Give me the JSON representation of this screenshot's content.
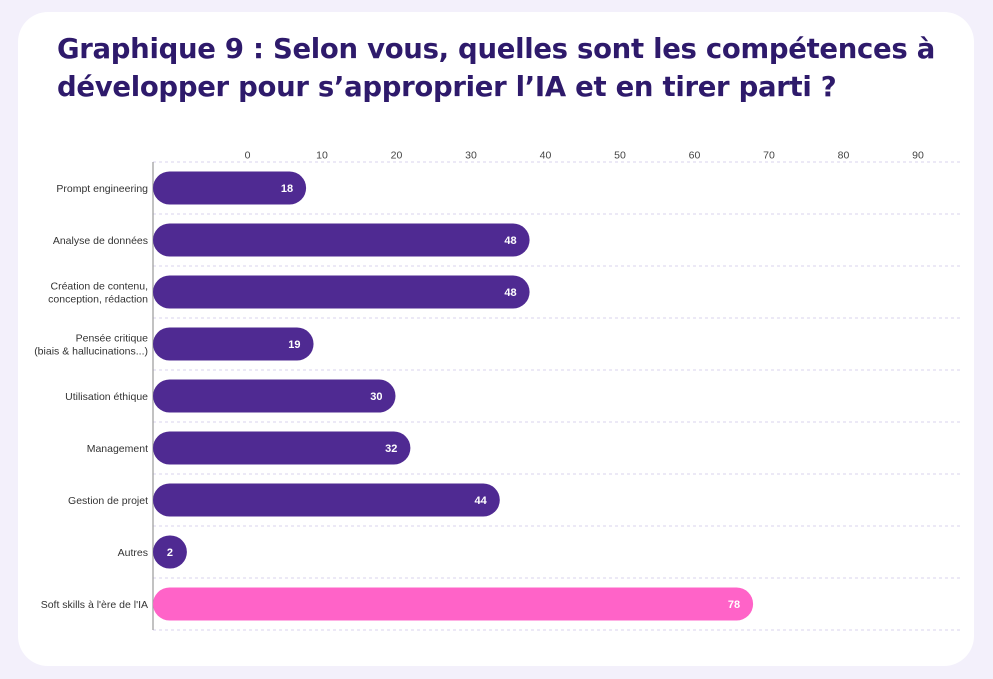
{
  "title": "Graphique 9 : Selon vous, quelles sont les compétences à développer pour s’approprier l’IA et en tirer parti ?",
  "colors": {
    "bar": "#4f2a92",
    "highlight": "#ff63c8",
    "background": "#f3f0fb",
    "card": "#ffffff",
    "title": "#2e1a6b",
    "grid": "#d9d3ee",
    "axis": "#999999"
  },
  "chart_data": {
    "type": "bar",
    "orientation": "horizontal",
    "title": "Graphique 9 : Selon vous, quelles sont les compétences à développer pour s’approprier l’IA et en tirer parti ?",
    "categories": [
      [
        "Prompt engineering"
      ],
      [
        "Analyse de données"
      ],
      [
        "Création de contenu,",
        "conception, rédaction"
      ],
      [
        "Pensée critique",
        "(biais & hallucinations...)"
      ],
      [
        "Utilisation éthique"
      ],
      [
        "Management"
      ],
      [
        "Gestion de projet"
      ],
      [
        "Autres"
      ],
      [
        "Soft skills à l'ère de l'IA"
      ]
    ],
    "values": [
      18,
      48,
      48,
      19,
      30,
      32,
      44,
      2,
      78
    ],
    "highlight_index": 8,
    "xticks": [
      0,
      10,
      20,
      30,
      40,
      50,
      60,
      70,
      80,
      90
    ],
    "xlim": [
      0,
      90
    ],
    "xlabel": "",
    "ylabel": "",
    "data_labels": true,
    "x_axis_position": "top",
    "grid": "horizontal-dashed"
  }
}
